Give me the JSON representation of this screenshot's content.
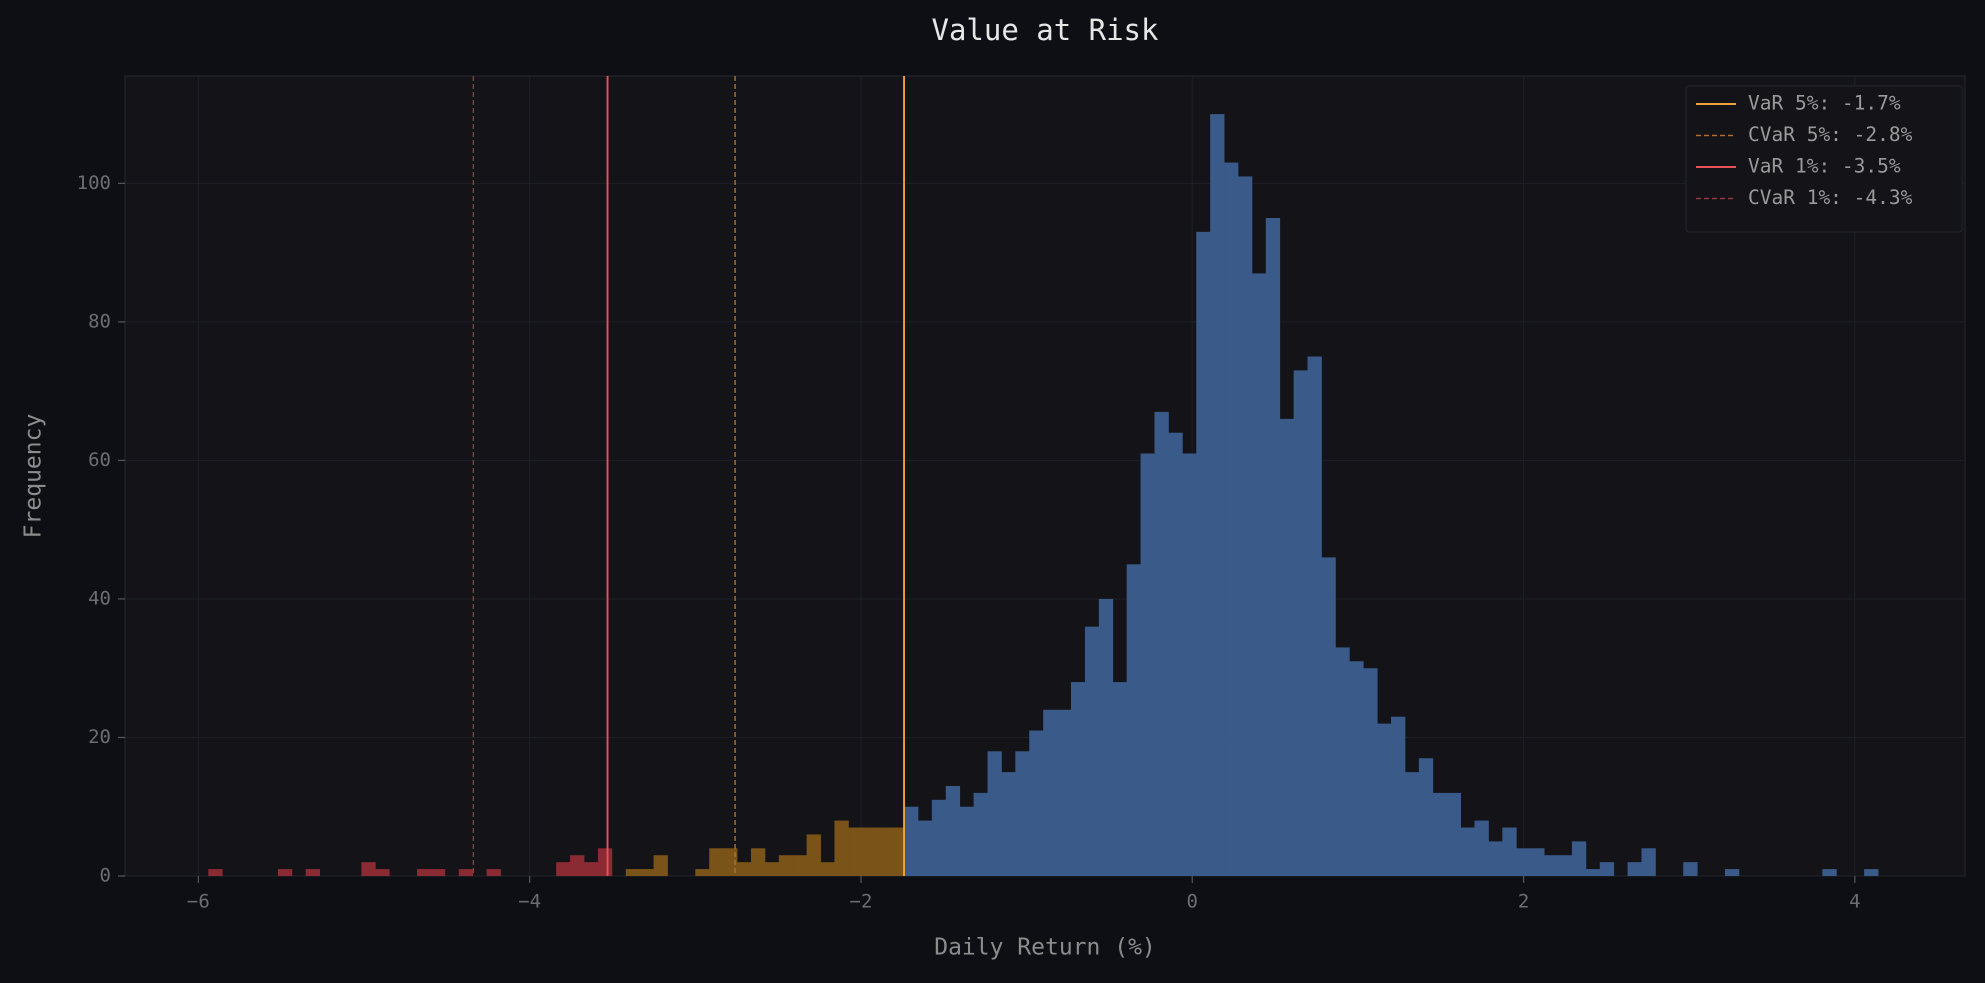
{
  "chart_data": {
    "type": "histogram",
    "title": "Value at Risk",
    "xlabel": "Daily Return (%)",
    "ylabel": "Frequency",
    "bins": [
      -5.94,
      -5.856,
      -5.772,
      -5.688,
      -5.604,
      -5.52,
      -5.436,
      -5.352,
      -5.268,
      -5.184,
      -5.1,
      -5.016,
      -4.932,
      -4.848,
      -4.764,
      -4.68,
      -4.596,
      -4.512,
      -4.428,
      -4.344,
      -4.26,
      -4.176,
      -4.092,
      -4.008,
      -3.924,
      -3.84,
      -3.756,
      -3.672,
      -3.588,
      -3.504,
      -3.42,
      -3.336,
      -3.252,
      -3.168,
      -3.084,
      -3.0,
      -2.916,
      -2.832,
      -2.748,
      -2.664,
      -2.58,
      -2.496,
      -2.412,
      -2.328,
      -2.244,
      -2.16,
      -2.076,
      -1.992,
      -1.908,
      -1.824,
      -1.74,
      -1.656,
      -1.572,
      -1.488,
      -1.404,
      -1.32,
      -1.236,
      -1.152,
      -1.068,
      -0.984,
      -0.9,
      -0.816,
      -0.732,
      -0.648,
      -0.564,
      -0.48,
      -0.396,
      -0.312,
      -0.228,
      -0.144,
      -0.06,
      0.024,
      0.108,
      0.192,
      0.276,
      0.36,
      0.444,
      0.528,
      0.612,
      0.696,
      0.78,
      0.864,
      0.948,
      1.032,
      1.116,
      1.2,
      1.284,
      1.368,
      1.452,
      1.536,
      1.62,
      1.704,
      1.788,
      1.872,
      1.956,
      2.04,
      2.124,
      2.208,
      2.292,
      2.376,
      2.46,
      2.544,
      2.628,
      2.712,
      2.796,
      2.88,
      2.964,
      3.048,
      3.132,
      3.216,
      3.3,
      3.384,
      3.468,
      3.552,
      3.636,
      3.72,
      3.804,
      3.888,
      3.972,
      4.056,
      4.14
    ],
    "counts": [
      1,
      0,
      0,
      0,
      0,
      1,
      0,
      1,
      0,
      0,
      0,
      2,
      1,
      0,
      0,
      1,
      1,
      0,
      1,
      0,
      1,
      0,
      0,
      0,
      0,
      2,
      3,
      2,
      4,
      0,
      1,
      1,
      3,
      0,
      0,
      1,
      4,
      4,
      2,
      4,
      2,
      3,
      3,
      6,
      2,
      8,
      7,
      7,
      7,
      7,
      10,
      8,
      11,
      13,
      10,
      12,
      18,
      15,
      18,
      21,
      24,
      24,
      28,
      36,
      40,
      28,
      45,
      61,
      67,
      64,
      61,
      93,
      110,
      103,
      101,
      87,
      95,
      66,
      73,
      75,
      46,
      33,
      31,
      30,
      22,
      23,
      15,
      17,
      12,
      12,
      7,
      8,
      5,
      7,
      4,
      4,
      3,
      3,
      5,
      1,
      2,
      0,
      2,
      4,
      0,
      0,
      2,
      0,
      0,
      1,
      0,
      0,
      0,
      0,
      0,
      0,
      1,
      0,
      0,
      1
    ],
    "color": "#3a5b89",
    "vlines": [
      {
        "name": "VaR 5%: -1.7%",
        "value": -1.74,
        "color": "#f0a33a",
        "dashed": false,
        "tail_color": "#7a5318"
      },
      {
        "name": "CVaR 5%: -2.8%",
        "value": -2.76,
        "color": "#b0712a",
        "dashed": true
      },
      {
        "name": "VaR 1%: -3.5%",
        "value": -3.53,
        "color": "#e8535a",
        "dashed": false,
        "tail_color": "#8a2a33"
      },
      {
        "name": "CVaR 1%: -4.3%",
        "value": -4.34,
        "color": "#8e3a3e",
        "dashed": true
      }
    ],
    "xlim": [
      -6.443,
      4.665
    ],
    "ylim": [
      0,
      115.5
    ],
    "xticks": [
      {
        "value": -6,
        "label": "−6"
      },
      {
        "value": -4,
        "label": "−4"
      },
      {
        "value": -2,
        "label": "−2"
      },
      0,
      2,
      4
    ],
    "yticks": [
      0,
      20,
      40,
      60,
      80,
      100
    ],
    "grid": true,
    "legend": "upper right"
  }
}
